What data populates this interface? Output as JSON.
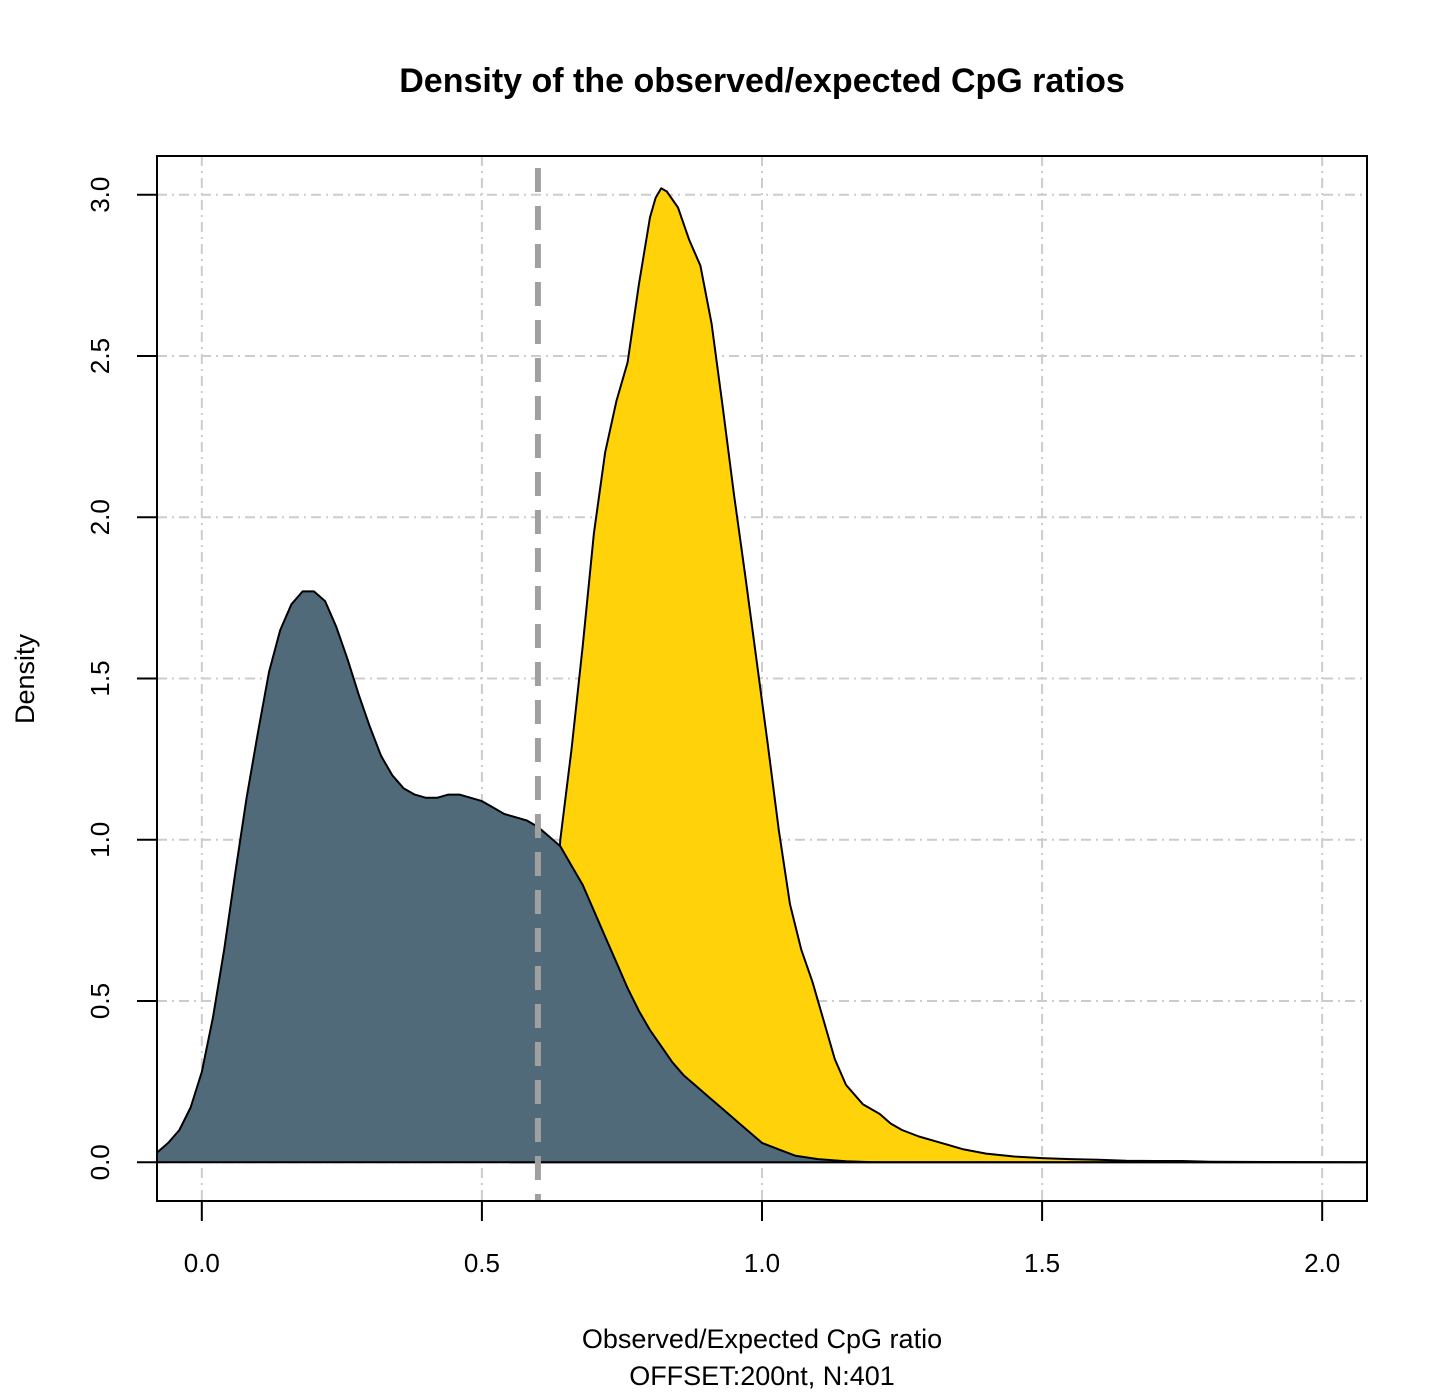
{
  "chart_data": {
    "type": "area",
    "title": "Density of the observed/expected CpG ratios",
    "xlabel": "Observed/Expected CpG ratio",
    "xlabel_sub": "OFFSET:200nt, N:401",
    "ylabel": "Density",
    "xlim": [
      -0.08,
      2.08
    ],
    "ylim": [
      -0.12,
      3.12
    ],
    "x_ticks": [
      0.0,
      0.5,
      1.0,
      1.5,
      2.0
    ],
    "x_tick_labels": [
      "0.0",
      "0.5",
      "1.0",
      "1.5",
      "2.0"
    ],
    "y_ticks": [
      0.0,
      0.5,
      1.0,
      1.5,
      2.0,
      2.5,
      3.0
    ],
    "y_tick_labels": [
      "0.0",
      "0.5",
      "1.0",
      "1.5",
      "2.0",
      "2.5",
      "3.0"
    ],
    "grid": true,
    "threshold_x": 0.6,
    "colors": {
      "series_1": "#ffd20a",
      "series_2": "#506a7a",
      "grid": "#cccccc",
      "threshold": "#a0a0a0",
      "outline": "#000000"
    },
    "series": [
      {
        "fill": "#ffd20a",
        "points": [
          [
            0.55,
            0.0
          ],
          [
            0.6,
            0.1
          ],
          [
            0.62,
            0.45
          ],
          [
            0.64,
            1.0
          ],
          [
            0.66,
            1.28
          ],
          [
            0.68,
            1.6
          ],
          [
            0.7,
            1.95
          ],
          [
            0.72,
            2.2
          ],
          [
            0.74,
            2.36
          ],
          [
            0.76,
            2.48
          ],
          [
            0.78,
            2.72
          ],
          [
            0.8,
            2.93
          ],
          [
            0.81,
            2.99
          ],
          [
            0.82,
            3.02
          ],
          [
            0.83,
            3.01
          ],
          [
            0.85,
            2.96
          ],
          [
            0.87,
            2.86
          ],
          [
            0.89,
            2.78
          ],
          [
            0.91,
            2.6
          ],
          [
            0.93,
            2.34
          ],
          [
            0.95,
            2.07
          ],
          [
            0.97,
            1.82
          ],
          [
            0.99,
            1.56
          ],
          [
            1.01,
            1.3
          ],
          [
            1.03,
            1.03
          ],
          [
            1.05,
            0.8
          ],
          [
            1.07,
            0.66
          ],
          [
            1.09,
            0.56
          ],
          [
            1.11,
            0.44
          ],
          [
            1.13,
            0.32
          ],
          [
            1.15,
            0.24
          ],
          [
            1.18,
            0.18
          ],
          [
            1.21,
            0.15
          ],
          [
            1.23,
            0.12
          ],
          [
            1.25,
            0.1
          ],
          [
            1.28,
            0.08
          ],
          [
            1.32,
            0.06
          ],
          [
            1.36,
            0.04
          ],
          [
            1.4,
            0.027
          ],
          [
            1.45,
            0.018
          ],
          [
            1.5,
            0.013
          ],
          [
            1.55,
            0.01
          ],
          [
            1.6,
            0.008
          ],
          [
            1.65,
            0.005
          ],
          [
            1.7,
            0.004
          ],
          [
            1.75,
            0.004
          ],
          [
            1.8,
            0.002
          ],
          [
            1.9,
            0.001
          ],
          [
            2.08,
            0.0
          ]
        ]
      },
      {
        "fill": "#506a7a",
        "points": [
          [
            -0.08,
            0.03
          ],
          [
            -0.06,
            0.06
          ],
          [
            -0.04,
            0.1
          ],
          [
            -0.02,
            0.17
          ],
          [
            0.0,
            0.28
          ],
          [
            0.02,
            0.45
          ],
          [
            0.04,
            0.66
          ],
          [
            0.06,
            0.9
          ],
          [
            0.08,
            1.13
          ],
          [
            0.1,
            1.33
          ],
          [
            0.12,
            1.52
          ],
          [
            0.14,
            1.65
          ],
          [
            0.16,
            1.73
          ],
          [
            0.18,
            1.77
          ],
          [
            0.2,
            1.77
          ],
          [
            0.22,
            1.74
          ],
          [
            0.24,
            1.66
          ],
          [
            0.26,
            1.56
          ],
          [
            0.28,
            1.45
          ],
          [
            0.3,
            1.35
          ],
          [
            0.32,
            1.26
          ],
          [
            0.34,
            1.2
          ],
          [
            0.36,
            1.16
          ],
          [
            0.38,
            1.14
          ],
          [
            0.4,
            1.13
          ],
          [
            0.42,
            1.13
          ],
          [
            0.44,
            1.14
          ],
          [
            0.46,
            1.14
          ],
          [
            0.48,
            1.13
          ],
          [
            0.5,
            1.12
          ],
          [
            0.52,
            1.1
          ],
          [
            0.54,
            1.08
          ],
          [
            0.56,
            1.07
          ],
          [
            0.58,
            1.06
          ],
          [
            0.6,
            1.04
          ],
          [
            0.62,
            1.01
          ],
          [
            0.64,
            0.98
          ],
          [
            0.66,
            0.92
          ],
          [
            0.68,
            0.86
          ],
          [
            0.7,
            0.78
          ],
          [
            0.72,
            0.7
          ],
          [
            0.74,
            0.62
          ],
          [
            0.76,
            0.54
          ],
          [
            0.78,
            0.47
          ],
          [
            0.8,
            0.41
          ],
          [
            0.82,
            0.36
          ],
          [
            0.84,
            0.31
          ],
          [
            0.86,
            0.27
          ],
          [
            0.88,
            0.24
          ],
          [
            0.9,
            0.21
          ],
          [
            0.92,
            0.18
          ],
          [
            0.94,
            0.15
          ],
          [
            0.96,
            0.12
          ],
          [
            0.98,
            0.09
          ],
          [
            1.0,
            0.06
          ],
          [
            1.03,
            0.04
          ],
          [
            1.06,
            0.02
          ],
          [
            1.1,
            0.01
          ],
          [
            1.15,
            0.003
          ],
          [
            1.2,
            0.0
          ],
          [
            2.08,
            0.0
          ]
        ]
      }
    ]
  }
}
